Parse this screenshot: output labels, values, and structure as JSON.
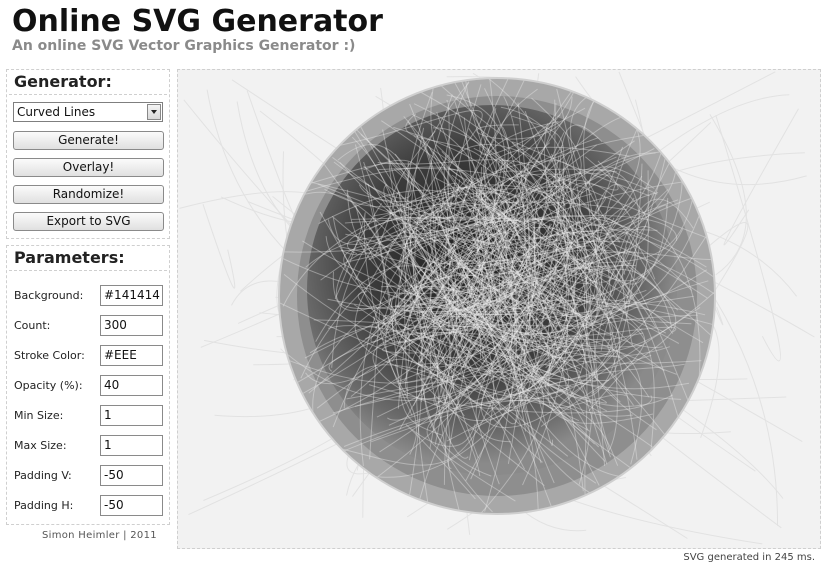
{
  "header": {
    "title": "Online SVG Generator",
    "subtitle": "An online SVG Vector Graphics Generator :)"
  },
  "generator": {
    "heading": "Generator:",
    "type_selected": "Curved Lines",
    "buttons": {
      "generate": "Generate!",
      "overlay": "Overlay!",
      "randomize": "Randomize!",
      "export": "Export to SVG"
    }
  },
  "parameters": {
    "heading": "Parameters:",
    "fields": [
      {
        "label": "Background:",
        "value": "#141414"
      },
      {
        "label": "Count:",
        "value": "300"
      },
      {
        "label": "Stroke Color:",
        "value": "#EEE"
      },
      {
        "label": "Opacity (%):",
        "value": "40"
      },
      {
        "label": "Min Size:",
        "value": "1"
      },
      {
        "label": "Max Size:",
        "value": "1"
      },
      {
        "label": "Padding V:",
        "value": "-50"
      },
      {
        "label": "Padding H:",
        "value": "-50"
      }
    ]
  },
  "credit": "Simon Heimler | 2011",
  "status": "SVG generated in 245 ms.",
  "colors": {
    "canvas_bg": "#f2f2f2",
    "circle_outer": "#a9a9a9",
    "circle_inner": "#3a3a3a",
    "stroke": "#eeeeee"
  }
}
